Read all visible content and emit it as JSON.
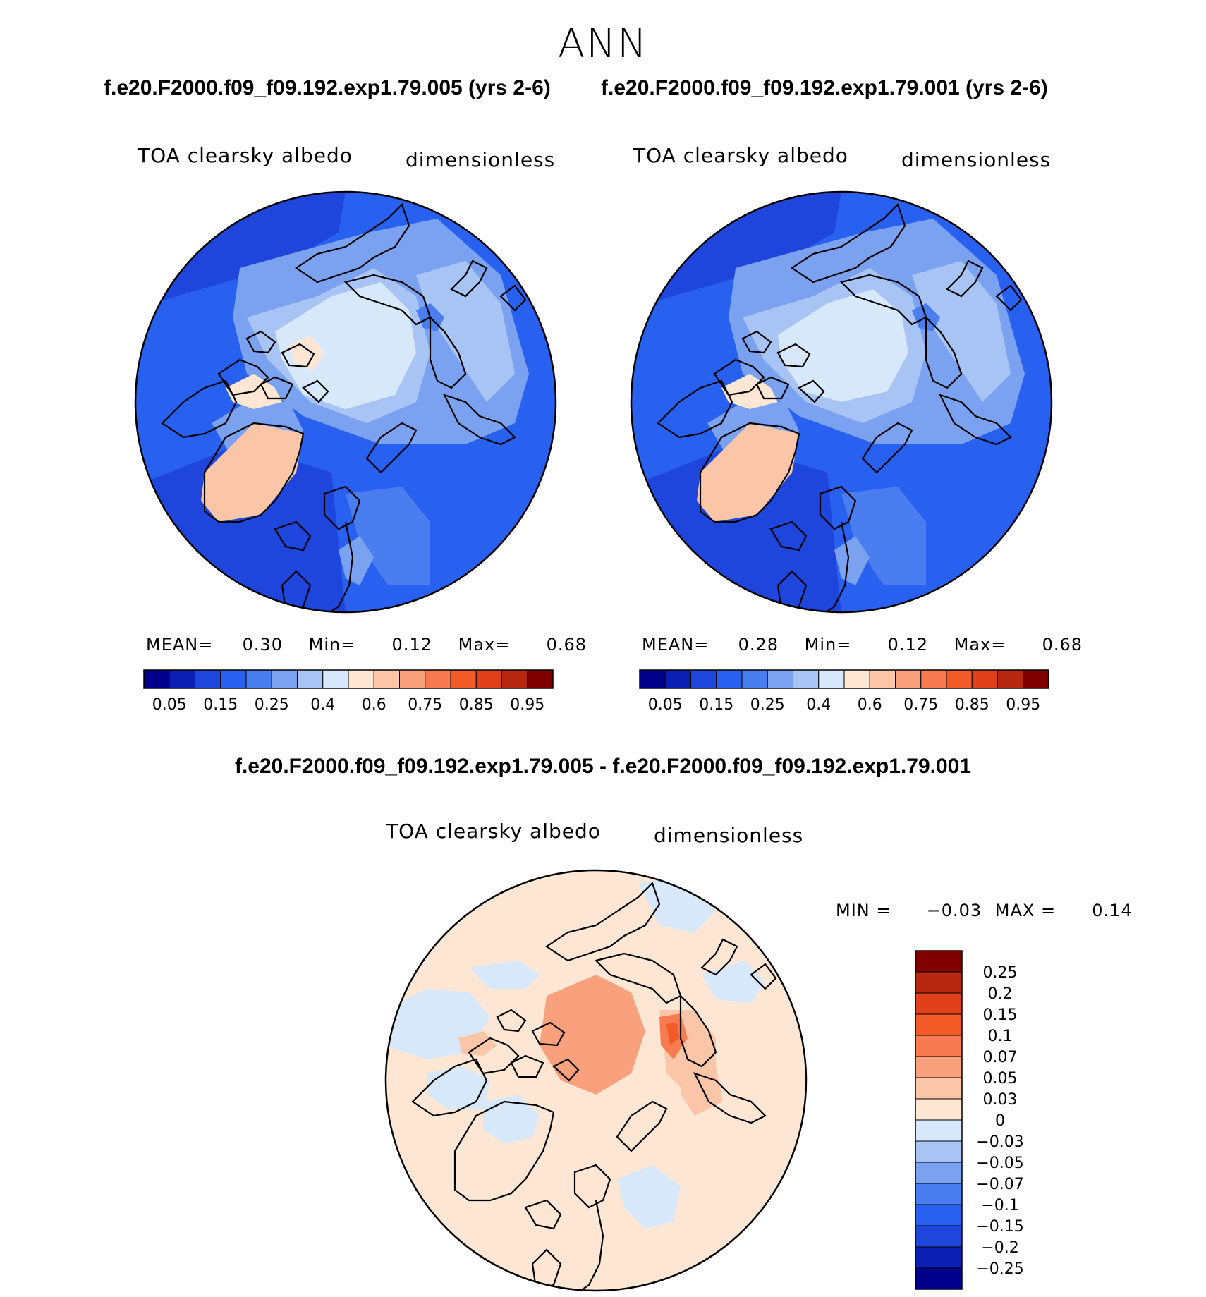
{
  "season": "ANN",
  "case_titles": [
    "f.e20.F2000.f09_f09.192.exp1.79.005 (yrs 2-6)",
    "f.e20.F2000.f09_f09.192.exp1.79.001 (yrs 2-6)"
  ],
  "diff_title": "f.e20.F2000.f09_f09.192.exp1.79.005 - f.e20.F2000.f09_f09.192.exp1.79.001",
  "chart_data": [
    {
      "type": "heatmap",
      "projection": "north polar stereographic",
      "variable": "TOA clearsky albedo",
      "units": "dimensionless",
      "stats": {
        "mean_label": "MEAN=",
        "mean": "0.30",
        "min_label": "Min=",
        "min": "0.12",
        "max_label": "Max=",
        "max": "0.68"
      },
      "colorbar_colors": [
        "#00008b",
        "#0a1eb4",
        "#1e46dc",
        "#2860f0",
        "#4a7ef0",
        "#7aa2f0",
        "#a8c4f4",
        "#d6e8fa",
        "#fde7d4",
        "#fbc5a8",
        "#f9a07c",
        "#f77a50",
        "#f25a28",
        "#e0401a",
        "#b82810",
        "#800000"
      ],
      "colorbar_ticks": [
        "0.05",
        "0.15",
        "0.25",
        "0.4",
        "0.6",
        "0.75",
        "0.85",
        "0.95"
      ]
    },
    {
      "type": "heatmap",
      "projection": "north polar stereographic",
      "variable": "TOA clearsky albedo",
      "units": "dimensionless",
      "stats": {
        "mean_label": "MEAN=",
        "mean": "0.28",
        "min_label": "Min=",
        "min": "0.12",
        "max_label": "Max=",
        "max": "0.68"
      },
      "colorbar_colors": [
        "#00008b",
        "#0a1eb4",
        "#1e46dc",
        "#2860f0",
        "#4a7ef0",
        "#7aa2f0",
        "#a8c4f4",
        "#d6e8fa",
        "#fde7d4",
        "#fbc5a8",
        "#f9a07c",
        "#f77a50",
        "#f25a28",
        "#e0401a",
        "#b82810",
        "#800000"
      ],
      "colorbar_ticks": [
        "0.05",
        "0.15",
        "0.25",
        "0.4",
        "0.6",
        "0.75",
        "0.85",
        "0.95"
      ]
    },
    {
      "type": "heatmap",
      "projection": "north polar stereographic",
      "variable": "TOA clearsky albedo",
      "units": "dimensionless",
      "stats": {
        "min_label": "MIN =",
        "min": "−0.03",
        "max_label": "MAX =",
        "max": "0.14"
      },
      "colorbar_colors": [
        "#800000",
        "#b82810",
        "#e0401a",
        "#f25a28",
        "#f77a50",
        "#f9a07c",
        "#fbc5a8",
        "#fde7d4",
        "#d6e8fa",
        "#a8c4f4",
        "#7aa2f0",
        "#4a7ef0",
        "#2860f0",
        "#1e46dc",
        "#0a1eb4",
        "#00008b"
      ],
      "colorbar_ticks": [
        "0.25",
        "0.2",
        "0.15",
        "0.1",
        "0.07",
        "0.05",
        "0.03",
        "0",
        "−0.03",
        "−0.05",
        "−0.07",
        "−0.1",
        "−0.15",
        "−0.2",
        "−0.25"
      ]
    }
  ]
}
